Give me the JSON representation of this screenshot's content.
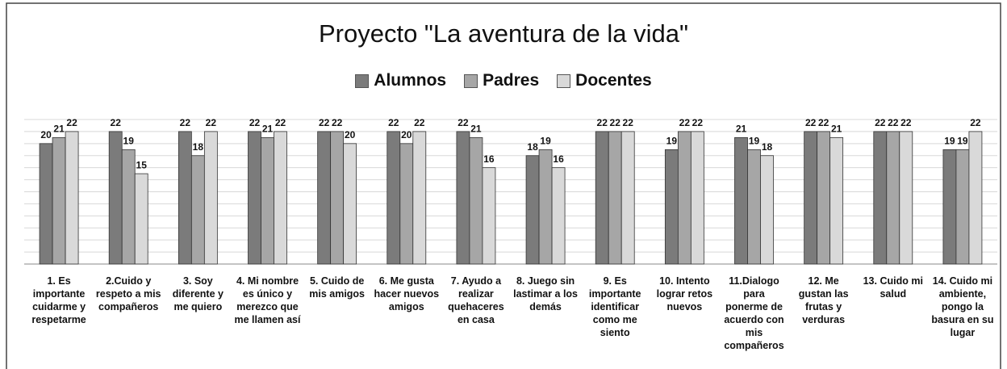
{
  "chart_data": {
    "type": "bar",
    "title": "Proyecto \"La aventura de la vida\"",
    "categories": [
      "1. Es importante cuidarme y respetarme",
      "2.Cuido y respeto a mis compañeros",
      "3. Soy diferente y me quiero",
      "4. Mi nombre es único y merezco que me llamen así",
      "5. Cuido de mis amigos",
      "6. Me gusta hacer nuevos amigos",
      "7. Ayudo a realizar quehaceres en casa",
      "8. Juego sin lastimar a los demás",
      "9. Es importante identificar como me siento",
      "10. Intento lograr retos nuevos",
      "11.Dialogo para ponerme de acuerdo con mis compañeros",
      "12. Me gustan las frutas y verduras",
      "13. Cuido mi salud",
      "14. Cuido mi ambiente, pongo la basura en su lugar"
    ],
    "series": [
      {
        "name": "Alumnos",
        "color": "#7b7b7b",
        "values": [
          20,
          22,
          22,
          22,
          22,
          22,
          22,
          18,
          22,
          19,
          21,
          22,
          22,
          19
        ]
      },
      {
        "name": "Padres",
        "color": "#a6a6a6",
        "values": [
          21,
          19,
          18,
          21,
          22,
          20,
          21,
          19,
          22,
          22,
          19,
          22,
          22,
          19
        ]
      },
      {
        "name": "Docentes",
        "color": "#d9d9d9",
        "values": [
          22,
          15,
          22,
          22,
          20,
          22,
          16,
          16,
          22,
          22,
          18,
          21,
          22,
          22
        ]
      }
    ],
    "ylim": [
      0,
      24
    ],
    "yticks": [
      0,
      2,
      4,
      6,
      8,
      10,
      12,
      14,
      16,
      18,
      20,
      22,
      24
    ],
    "grid": true
  }
}
